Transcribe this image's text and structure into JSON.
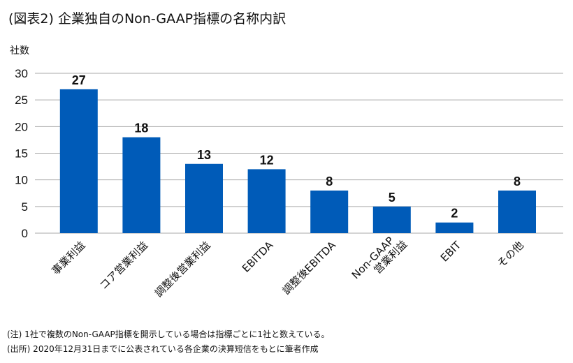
{
  "chart_data": {
    "type": "bar",
    "title": "(図表2) 企業独自のNon-GAAP指標の名称内訳",
    "ylabel": "社数",
    "xlabel": "",
    "categories": [
      "事業利益",
      "コア営業利益",
      "調整後営業利益",
      "EBITDA",
      "調整後EBITDA",
      "Non-GAAP\n営業利益",
      "EBIT",
      "その他"
    ],
    "values": [
      27,
      18,
      13,
      12,
      8,
      5,
      2,
      8
    ],
    "ylim": [
      0,
      30
    ],
    "yticks": [
      0,
      5,
      10,
      15,
      20,
      25,
      30
    ],
    "grid": true,
    "bar_color": "#005BB8",
    "data_labels": true
  },
  "notes": {
    "note": "(注) 1社で複数のNon-GAAP指標を開示している場合は指標ごとに1社と数えている。",
    "source": "(出所) 2020年12月31日までに公表されている各企業の決算短信をもとに筆者作成"
  }
}
